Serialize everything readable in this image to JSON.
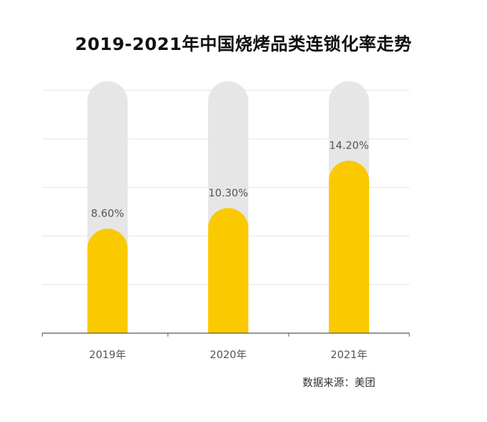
{
  "chart_data": {
    "type": "bar",
    "title": "2019-2021年中国烧烤品类连锁化率走势",
    "categories": [
      "2019年",
      "2020年",
      "2021年"
    ],
    "values": [
      8.6,
      10.3,
      14.2
    ],
    "value_labels": [
      "8.60%",
      "10.30%",
      "14.20%"
    ],
    "unit": "%",
    "ylim": [
      0,
      20
    ],
    "grid": true,
    "source": "数据来源：美团"
  },
  "colors": {
    "bar": "#FBC900",
    "bar_track": "#E6E6E6",
    "grid": "#E2E2E2",
    "axis": "#555555",
    "label": "#555555"
  }
}
